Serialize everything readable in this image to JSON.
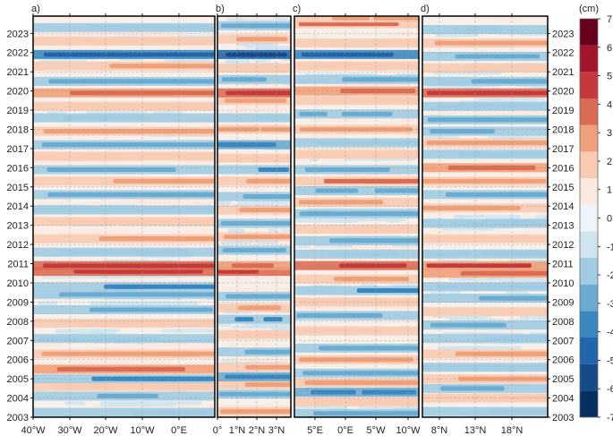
{
  "chart_data": {
    "type": "heatmap",
    "title": "",
    "y_axis": {
      "range": [
        2003,
        2023.9
      ],
      "tick_labels": [
        "2003",
        "2004",
        "2005",
        "2006",
        "2007",
        "2008",
        "2009",
        "2010",
        "2011",
        "2012",
        "2013",
        "2014",
        "2015",
        "2016",
        "2017",
        "2018",
        "2019",
        "2020",
        "2021",
        "2022",
        "2023"
      ]
    },
    "colorbar": {
      "unit": "(cm)",
      "range": [
        -7,
        7
      ],
      "tick_labels": [
        "7",
        "6",
        "5",
        "4",
        "3",
        "2",
        "1",
        "0",
        "-1",
        "-2",
        "-3",
        "-4",
        "-5",
        "-6",
        "-7"
      ],
      "colors": [
        "#053061",
        "#134c87",
        "#2166ac",
        "#3a87bf",
        "#6aabd1",
        "#a0cbe2",
        "#cfe4ef",
        "#eef4f8",
        "#fbe9e0",
        "#f8cbb2",
        "#f0a078",
        "#dc6b53",
        "#c43a3a",
        "#a3152b",
        "#67001f"
      ]
    },
    "panels": [
      {
        "letter": "a)",
        "x_ticks": [
          "40°W",
          "30°W",
          "20°W",
          "10°W",
          "0°E"
        ],
        "anomalies": [
          {
            "year": 2003.25,
            "value": -2
          },
          {
            "year": 2004.1,
            "value": -2.5
          },
          {
            "year": 2004.6,
            "value": 2
          },
          {
            "year": 2005.0,
            "value": -3.5
          },
          {
            "year": 2005.5,
            "value": 4
          },
          {
            "year": 2006.3,
            "value": 2.5
          },
          {
            "year": 2007.1,
            "value": -2
          },
          {
            "year": 2007.9,
            "value": 2
          },
          {
            "year": 2008.6,
            "value": -3
          },
          {
            "year": 2009.4,
            "value": -2.5
          },
          {
            "year": 2009.8,
            "value": -3.5
          },
          {
            "year": 2010.6,
            "value": 5
          },
          {
            "year": 2010.9,
            "value": 5
          },
          {
            "year": 2011.6,
            "value": -2
          },
          {
            "year": 2012.3,
            "value": 2.5
          },
          {
            "year": 2013.2,
            "value": 2
          },
          {
            "year": 2013.8,
            "value": -2
          },
          {
            "year": 2014.6,
            "value": -3
          },
          {
            "year": 2015.3,
            "value": 2.5
          },
          {
            "year": 2015.9,
            "value": -3
          },
          {
            "year": 2016.6,
            "value": 2
          },
          {
            "year": 2017.2,
            "value": -3
          },
          {
            "year": 2017.9,
            "value": 2.5
          },
          {
            "year": 2018.6,
            "value": -2
          },
          {
            "year": 2019.2,
            "value": 2
          },
          {
            "year": 2019.9,
            "value": 4
          },
          {
            "year": 2020.5,
            "value": -2.5
          },
          {
            "year": 2021.3,
            "value": 2.5
          },
          {
            "year": 2021.9,
            "value": -5
          },
          {
            "year": 2022.6,
            "value": 2
          },
          {
            "year": 2023.3,
            "value": -2
          }
        ]
      },
      {
        "letter": "b)",
        "x_ticks": [
          "0°",
          "1°N",
          "2°N",
          "3°N"
        ],
        "anomalies": [
          {
            "year": 2003.3,
            "value": 3
          },
          {
            "year": 2004.2,
            "value": -3
          },
          {
            "year": 2004.7,
            "value": 2.5
          },
          {
            "year": 2005.1,
            "value": -4
          },
          {
            "year": 2005.6,
            "value": 3
          },
          {
            "year": 2006.4,
            "value": -2.5
          },
          {
            "year": 2007.3,
            "value": 2
          },
          {
            "year": 2008.1,
            "value": -3.5
          },
          {
            "year": 2008.7,
            "value": 3
          },
          {
            "year": 2009.3,
            "value": -2.5
          },
          {
            "year": 2010.6,
            "value": 5
          },
          {
            "year": 2010.9,
            "value": 4
          },
          {
            "year": 2011.7,
            "value": -3
          },
          {
            "year": 2012.4,
            "value": 2.5
          },
          {
            "year": 2013.1,
            "value": -2.5
          },
          {
            "year": 2013.8,
            "value": 3
          },
          {
            "year": 2014.5,
            "value": -3
          },
          {
            "year": 2015.3,
            "value": 3
          },
          {
            "year": 2015.9,
            "value": -3.5
          },
          {
            "year": 2016.5,
            "value": 2
          },
          {
            "year": 2017.2,
            "value": -4
          },
          {
            "year": 2018.0,
            "value": 3
          },
          {
            "year": 2018.6,
            "value": -2
          },
          {
            "year": 2019.5,
            "value": 2.5
          },
          {
            "year": 2019.9,
            "value": 5
          },
          {
            "year": 2020.6,
            "value": -3
          },
          {
            "year": 2021.2,
            "value": 2
          },
          {
            "year": 2021.9,
            "value": -6
          },
          {
            "year": 2022.7,
            "value": 3
          },
          {
            "year": 2023.4,
            "value": -3
          }
        ]
      },
      {
        "letter": "c)",
        "x_ticks": [
          "5°E",
          "0°E",
          "5°W",
          "10°W"
        ],
        "anomalies": [
          {
            "year": 2003.2,
            "value": -2.5
          },
          {
            "year": 2003.8,
            "value": 2
          },
          {
            "year": 2004.3,
            "value": -4
          },
          {
            "year": 2004.8,
            "value": 2.5
          },
          {
            "year": 2005.3,
            "value": -3
          },
          {
            "year": 2006.0,
            "value": 2.5
          },
          {
            "year": 2006.6,
            "value": -2.5
          },
          {
            "year": 2007.5,
            "value": 2
          },
          {
            "year": 2008.3,
            "value": -2.5
          },
          {
            "year": 2009.0,
            "value": 2
          },
          {
            "year": 2009.6,
            "value": -3.5
          },
          {
            "year": 2010.2,
            "value": 3
          },
          {
            "year": 2010.9,
            "value": 5
          },
          {
            "year": 2011.5,
            "value": -2
          },
          {
            "year": 2012.2,
            "value": -3
          },
          {
            "year": 2012.8,
            "value": 2
          },
          {
            "year": 2013.6,
            "value": -2.5
          },
          {
            "year": 2014.2,
            "value": 2.5
          },
          {
            "year": 2014.8,
            "value": -3
          },
          {
            "year": 2015.3,
            "value": 3.5
          },
          {
            "year": 2015.9,
            "value": -2.5
          },
          {
            "year": 2016.7,
            "value": 2
          },
          {
            "year": 2017.3,
            "value": -2
          },
          {
            "year": 2018.0,
            "value": 2.5
          },
          {
            "year": 2018.8,
            "value": -2.5
          },
          {
            "year": 2019.5,
            "value": 2
          },
          {
            "year": 2020.0,
            "value": 4
          },
          {
            "year": 2020.6,
            "value": -2.5
          },
          {
            "year": 2021.3,
            "value": 2
          },
          {
            "year": 2021.9,
            "value": -5
          },
          {
            "year": 2022.5,
            "value": 2
          },
          {
            "year": 2023.5,
            "value": 3.5
          },
          {
            "year": 2023.8,
            "value": 3
          }
        ]
      },
      {
        "letter": "d)",
        "x_ticks": [
          "8°N",
          "13°N",
          "18°N"
        ],
        "anomalies": [
          {
            "year": 2003.3,
            "value": -2
          },
          {
            "year": 2004.0,
            "value": 2
          },
          {
            "year": 2004.5,
            "value": -2.5
          },
          {
            "year": 2005.0,
            "value": 3
          },
          {
            "year": 2005.6,
            "value": -2
          },
          {
            "year": 2006.3,
            "value": 2.5
          },
          {
            "year": 2007.1,
            "value": -2
          },
          {
            "year": 2007.8,
            "value": -3
          },
          {
            "year": 2008.5,
            "value": 2
          },
          {
            "year": 2009.2,
            "value": -3
          },
          {
            "year": 2009.8,
            "value": -2
          },
          {
            "year": 2010.5,
            "value": 4
          },
          {
            "year": 2010.9,
            "value": 4.5
          },
          {
            "year": 2011.5,
            "value": -2
          },
          {
            "year": 2012.3,
            "value": 2
          },
          {
            "year": 2013.1,
            "value": -2
          },
          {
            "year": 2013.9,
            "value": 2.5
          },
          {
            "year": 2014.6,
            "value": -3
          },
          {
            "year": 2015.3,
            "value": 3
          },
          {
            "year": 2016.0,
            "value": 4
          },
          {
            "year": 2016.7,
            "value": -2
          },
          {
            "year": 2017.3,
            "value": 2.5
          },
          {
            "year": 2017.9,
            "value": -2.5
          },
          {
            "year": 2018.5,
            "value": -3
          },
          {
            "year": 2019.2,
            "value": -2
          },
          {
            "year": 2019.9,
            "value": 5
          },
          {
            "year": 2020.5,
            "value": -2.5
          },
          {
            "year": 2021.2,
            "value": 2
          },
          {
            "year": 2021.8,
            "value": -3
          },
          {
            "year": 2022.5,
            "value": 2.5
          },
          {
            "year": 2023.2,
            "value": -2
          }
        ]
      }
    ]
  }
}
